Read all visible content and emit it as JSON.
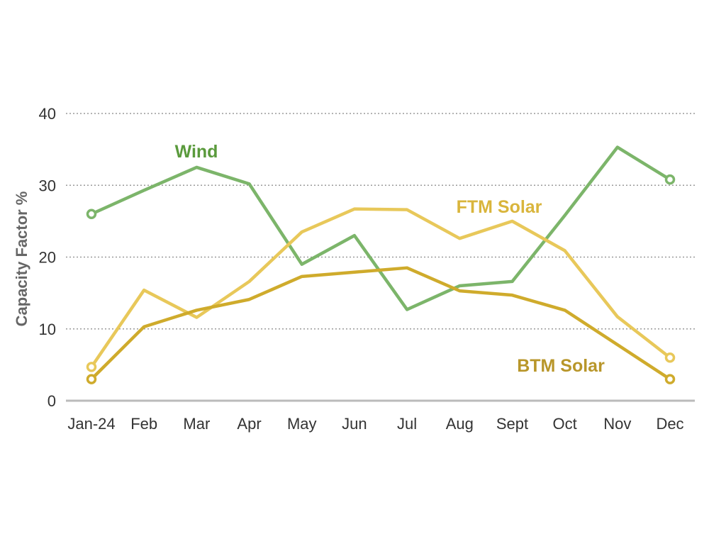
{
  "chart_data": {
    "type": "line",
    "categories": [
      "Jan-24",
      "Feb",
      "Mar",
      "Apr",
      "May",
      "Jun",
      "Jul",
      "Aug",
      "Sept",
      "Oct",
      "Nov",
      "Dec"
    ],
    "ylabel": "Capacity Factor %",
    "ylim": [
      0,
      40
    ],
    "yticks": [
      0,
      10,
      20,
      30,
      40
    ],
    "grid": true,
    "series": [
      {
        "name": "Wind",
        "color": "#7cb56a",
        "label_color": "#5a9a3c",
        "values": [
          26,
          29.3,
          32.5,
          30.2,
          19,
          23,
          12.7,
          16,
          16.6,
          25.8,
          35.3,
          30.8
        ]
      },
      {
        "name": "FTM Solar",
        "color": "#e8c85a",
        "label_color": "#d9b53c",
        "values": [
          4.7,
          15.4,
          11.6,
          16.6,
          23.5,
          26.7,
          26.6,
          22.6,
          25,
          20.9,
          11.7,
          6
        ]
      },
      {
        "name": "BTM Solar",
        "color": "#cfab2c",
        "label_color": "#b8962a",
        "values": [
          3,
          10.3,
          12.6,
          14.1,
          17.3,
          17.9,
          18.5,
          15.3,
          14.7,
          12.6,
          7.8,
          3
        ]
      }
    ]
  }
}
